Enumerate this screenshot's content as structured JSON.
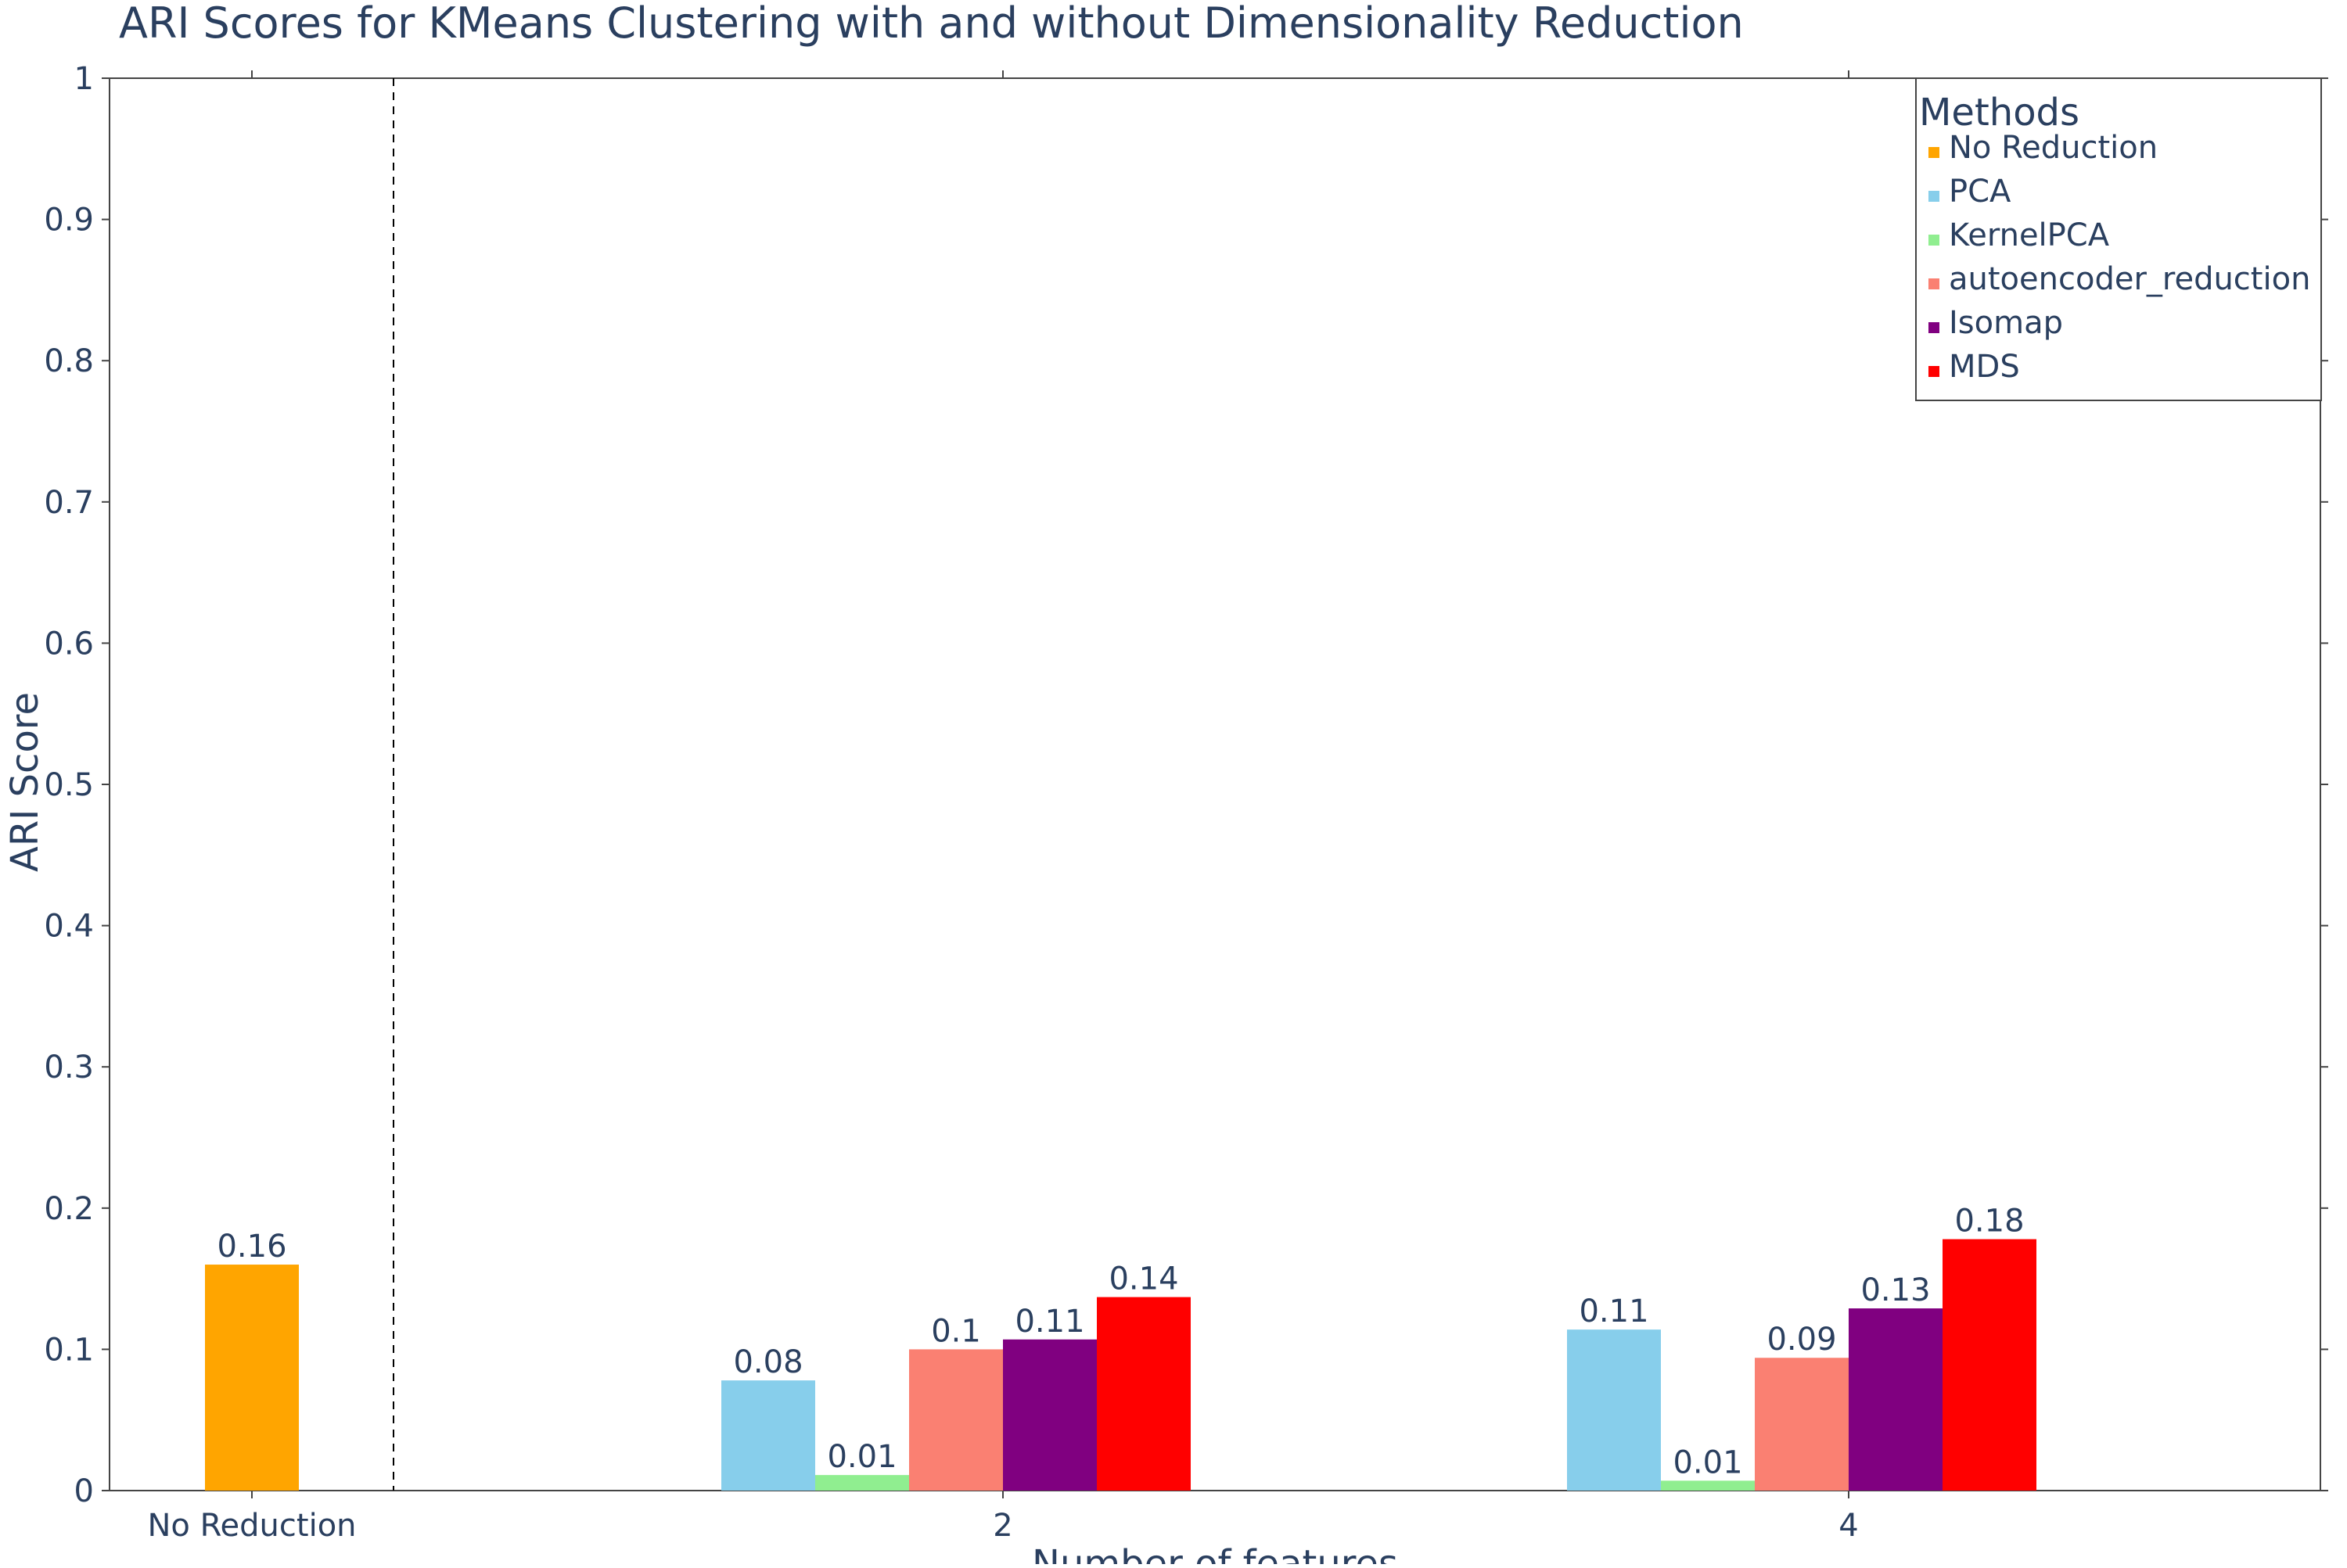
{
  "chart_data": {
    "type": "bar",
    "title": "ARI Scores for KMeans Clustering with and without Dimensionality Reduction",
    "xlabel": "Number of features",
    "ylabel": "ARI Score",
    "ylim": [
      0,
      1
    ],
    "yticks": [
      "0",
      "0.1",
      "0.2",
      "0.3",
      "0.4",
      "0.5",
      "0.6",
      "0.7",
      "0.8",
      "0.9",
      "1"
    ],
    "categories": [
      "No Reduction",
      "2",
      "4"
    ],
    "grid": false,
    "divider_after_category": "No Reduction",
    "legend": {
      "title": "Methods",
      "placement": "top-right"
    },
    "series": [
      {
        "name": "No Reduction",
        "color": "#FFA500",
        "values": [
          0.16,
          null,
          null
        ],
        "labels": [
          "0.16",
          null,
          null
        ]
      },
      {
        "name": "PCA",
        "color": "#87CEEB",
        "values": [
          null,
          0.078,
          0.114
        ],
        "labels": [
          null,
          "0.08",
          "0.11"
        ]
      },
      {
        "name": "KernelPCA",
        "color": "#90EE90",
        "values": [
          null,
          0.011,
          0.007
        ],
        "labels": [
          null,
          "0.01",
          "0.01"
        ]
      },
      {
        "name": "autoencoder_reduction",
        "color": "#FA8072",
        "values": [
          null,
          0.1,
          0.094
        ],
        "labels": [
          null,
          "0.1",
          "0.09"
        ]
      },
      {
        "name": "Isomap",
        "color": "#800080",
        "values": [
          null,
          0.107,
          0.129
        ],
        "labels": [
          null,
          "0.11",
          "0.13"
        ]
      },
      {
        "name": "MDS",
        "color": "#FF0000",
        "values": [
          null,
          0.137,
          0.178
        ],
        "labels": [
          null,
          "0.14",
          "0.18"
        ]
      }
    ]
  }
}
